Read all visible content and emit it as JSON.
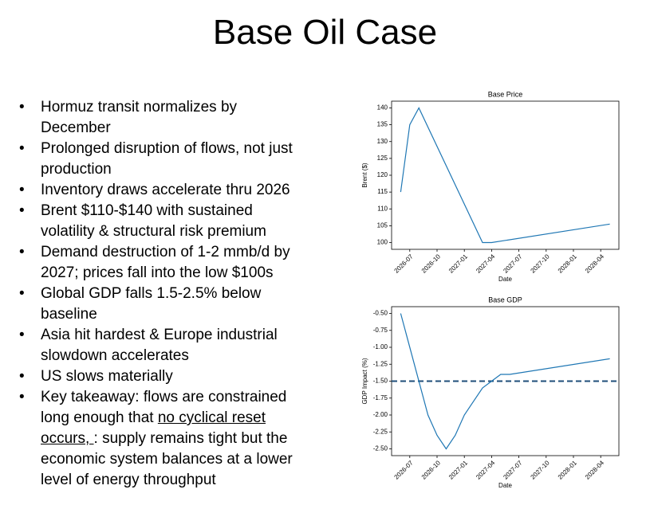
{
  "title": "Base Oil Case",
  "bullets": [
    "Hormuz transit normalizes by December",
    "Prolonged disruption of flows, not just production",
    "Inventory draws accelerate thru 2026",
    "Brent $110-$140 with sustained volatility & structural risk premium",
    "Demand destruction of 1-2 mmb/d by 2027; prices fall into the low $100s",
    "Global GDP falls 1.5-2.5% below baseline",
    "Asia hit hardest & Europe industrial slowdown accelerates",
    "US slows materially"
  ],
  "takeaway": {
    "before": "Key takeaway: flows are constrained long enough that ",
    "underlined": "no cyclical reset occurs, ",
    "after": ": supply remains tight but the economic system balances at a lower level of energy throughput"
  },
  "chart_data": [
    {
      "type": "line",
      "title": "Base Price",
      "x_label": "Date",
      "y_label": "Brent ($)",
      "color": "#1f77b4",
      "x": [
        "2026-06",
        "2026-07",
        "2026-08",
        "2027-03",
        "2027-04",
        "2028-05"
      ],
      "values": [
        115,
        135,
        140,
        100,
        100,
        105.5
      ],
      "xlim": [
        "2026-05",
        "2028-06"
      ],
      "xticks": [
        "2026-07",
        "2026-10",
        "2027-01",
        "2027-04",
        "2027-07",
        "2027-10",
        "2028-01",
        "2028-04"
      ],
      "ylim": [
        98,
        142
      ],
      "yticks": [
        100,
        105,
        110,
        115,
        120,
        125,
        130,
        135,
        140
      ]
    },
    {
      "type": "line",
      "title": "Base GDP",
      "x_label": "Date",
      "y_label": "GDP Impact (%)",
      "color": "#1f77b4",
      "x": [
        "2026-06",
        "2026-09",
        "2026-10",
        "2026-11",
        "2026-12",
        "2027-01",
        "2027-03",
        "2027-04",
        "2027-05",
        "2027-06",
        "2028-05"
      ],
      "values": [
        -0.5,
        -2.0,
        -2.3,
        -2.5,
        -2.3,
        -2.0,
        -1.6,
        -1.5,
        -1.4,
        -1.4,
        -1.17
      ],
      "hline": {
        "value": -1.5,
        "color": "#1f4e79"
      },
      "xlim": [
        "2026-05",
        "2028-06"
      ],
      "xticks": [
        "2026-07",
        "2026-10",
        "2027-01",
        "2027-04",
        "2027-07",
        "2027-10",
        "2028-01",
        "2028-04"
      ],
      "ylim": [
        -2.6,
        -0.4
      ],
      "yticks": [
        {
          "value": -0.5,
          "label": "-0.50"
        },
        {
          "value": -0.75,
          "label": "-0.75"
        },
        {
          "value": -1.0,
          "label": "-1.00"
        },
        {
          "value": -1.25,
          "label": "-1.25"
        },
        {
          "value": -1.5,
          "label": "-1.50"
        },
        {
          "value": -1.75,
          "label": "-1.75"
        },
        {
          "value": -2.0,
          "label": "-2.00"
        },
        {
          "value": -2.25,
          "label": "-2.25"
        },
        {
          "value": -2.5,
          "label": "-2.50"
        }
      ]
    }
  ]
}
